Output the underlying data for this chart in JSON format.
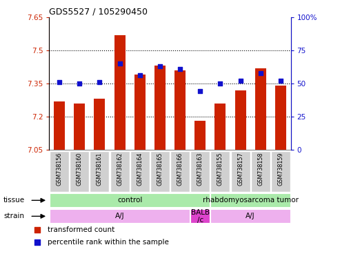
{
  "title": "GDS5527 / 105290450",
  "samples": [
    "GSM738156",
    "GSM738160",
    "GSM738161",
    "GSM738162",
    "GSM738164",
    "GSM738165",
    "GSM738166",
    "GSM738163",
    "GSM738155",
    "GSM738157",
    "GSM738158",
    "GSM738159"
  ],
  "transformed_count": [
    7.27,
    7.26,
    7.28,
    7.57,
    7.39,
    7.43,
    7.41,
    7.18,
    7.26,
    7.32,
    7.42,
    7.34
  ],
  "percentile_rank": [
    51,
    50,
    51,
    65,
    56,
    63,
    61,
    44,
    50,
    52,
    58,
    52
  ],
  "baseline": 7.05,
  "ylim_left": [
    7.05,
    7.65
  ],
  "ylim_right": [
    0,
    100
  ],
  "yticks_left": [
    7.05,
    7.2,
    7.35,
    7.5,
    7.65
  ],
  "yticks_right": [
    0,
    25,
    50,
    75,
    100
  ],
  "ytick_labels_left": [
    "7.05",
    "7.2",
    "7.35",
    "7.5",
    "7.65"
  ],
  "ytick_labels_right": [
    "0",
    "25",
    "50",
    "75",
    "100%"
  ],
  "hlines": [
    7.2,
    7.35,
    7.5
  ],
  "bar_color": "#cc2200",
  "dot_color": "#1111cc",
  "tissue_segments": [
    {
      "text": "control",
      "start": 0,
      "end": 7,
      "color": "#aaeaaa"
    },
    {
      "text": "rhabdomyosarcoma tumor",
      "start": 8,
      "end": 11,
      "color": "#aaeaaa"
    }
  ],
  "strain_segments": [
    {
      "text": "A/J",
      "start": 0,
      "end": 6,
      "color": "#eeb0ee"
    },
    {
      "text": "BALB\n/c",
      "start": 7,
      "end": 7,
      "color": "#dd44cc"
    },
    {
      "text": "A/J",
      "start": 8,
      "end": 11,
      "color": "#eeb0ee"
    }
  ],
  "tissue_row_label": "tissue",
  "strain_row_label": "strain",
  "legend_items": [
    {
      "label": "transformed count",
      "color": "#cc2200"
    },
    {
      "label": "percentile rank within the sample",
      "color": "#1111cc"
    }
  ],
  "bar_width": 0.55,
  "plot_bg": "#ffffff",
  "axes_color_left": "#cc2200",
  "axes_color_right": "#1111cc",
  "sample_bg": "#d0d0d0",
  "gap_color": "#ffffff"
}
